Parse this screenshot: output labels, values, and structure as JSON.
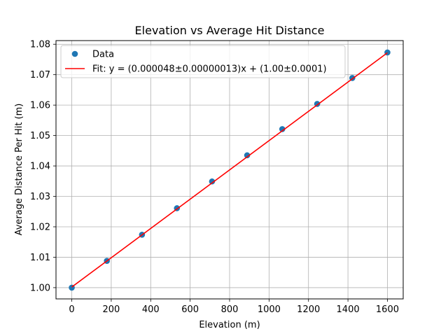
{
  "chart_data": {
    "type": "scatter",
    "title": "Elevation vs Average Hit Distance",
    "xlabel": "Elevation (m)",
    "ylabel": "Average Distance Per Hit (m)",
    "xlim": [
      -80,
      1680
    ],
    "ylim": [
      0.9963,
      1.0812
    ],
    "xticks": [
      0,
      200,
      400,
      600,
      800,
      1000,
      1200,
      1400,
      1600
    ],
    "xtick_labels": [
      "0",
      "200",
      "400",
      "600",
      "800",
      "1000",
      "1200",
      "1400",
      "1600"
    ],
    "yticks": [
      1.0,
      1.01,
      1.02,
      1.03,
      1.04,
      1.05,
      1.06,
      1.07,
      1.08
    ],
    "ytick_labels": [
      "1.00",
      "1.01",
      "1.02",
      "1.03",
      "1.04",
      "1.05",
      "1.06",
      "1.07",
      "1.08"
    ],
    "grid": true,
    "legend_position": "top-left",
    "series": [
      {
        "name": "Data",
        "kind": "scatter",
        "color": "#1f77b4",
        "x": [
          0,
          178,
          356,
          533,
          711,
          889,
          1067,
          1244,
          1422,
          1600
        ],
        "y": [
          1.0,
          1.0088,
          1.0174,
          1.0261,
          1.0349,
          1.0435,
          1.0521,
          1.0604,
          1.0689,
          1.0773
        ]
      },
      {
        "name": "Fit: y = (0.000048±0.00000013)x + (1.00±0.0001)",
        "kind": "line",
        "color": "#ff0000",
        "x": [
          0,
          1600
        ],
        "y": [
          1.0002,
          1.0772
        ]
      }
    ]
  }
}
